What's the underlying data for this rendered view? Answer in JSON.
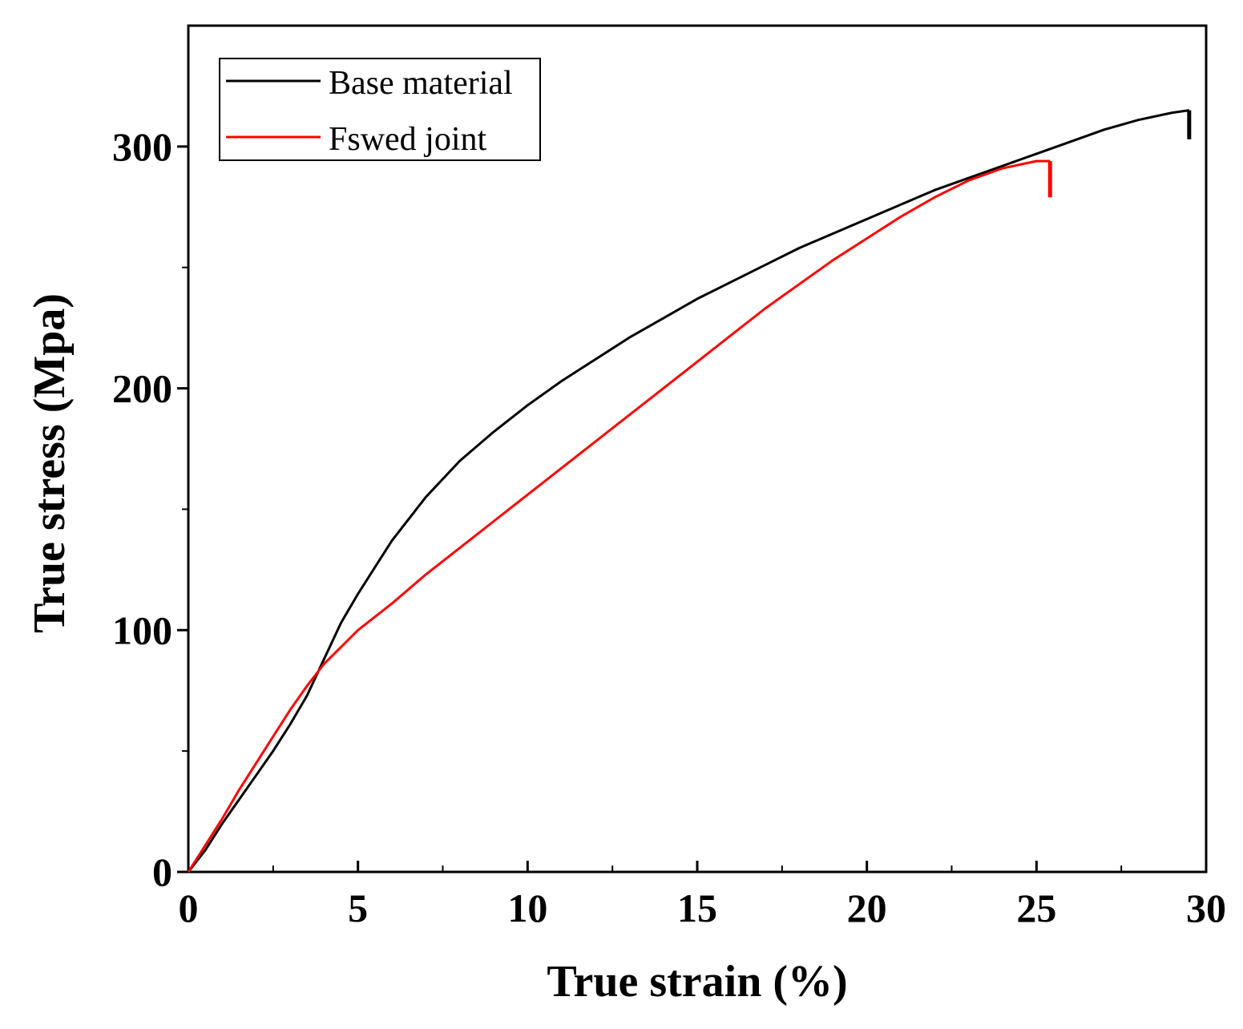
{
  "chart_data": {
    "type": "line",
    "title": "",
    "xlabel": "True strain (%)",
    "ylabel": "True stress (Mpa)",
    "xlim": [
      0,
      30
    ],
    "ylim": [
      0,
      350
    ],
    "x_ticks": [
      0,
      5,
      10,
      15,
      20,
      25,
      30
    ],
    "x_tick_labels": [
      "0",
      "5",
      "10",
      "15",
      "20",
      "25",
      "30"
    ],
    "y_ticks": [
      0,
      100,
      200,
      300
    ],
    "y_tick_labels": [
      "0",
      "100",
      "200",
      "300"
    ],
    "x_minor_step": 2.5,
    "y_minor_step": 50,
    "grid": false,
    "legend_position": "top-left",
    "series": [
      {
        "name": "Base material",
        "color": "#000000",
        "x": [
          0,
          0.5,
          1,
          1.5,
          2,
          2.5,
          3,
          3.5,
          4,
          4.5,
          5,
          6,
          7,
          8,
          9,
          10,
          11,
          12,
          13,
          14,
          15,
          16,
          17,
          18,
          19,
          20,
          21,
          22,
          23,
          24,
          25,
          26,
          27,
          28,
          29,
          29.5
        ],
        "y": [
          0,
          9,
          20,
          30,
          40,
          50,
          61,
          73,
          88,
          103,
          115,
          137,
          155,
          170,
          182,
          193,
          203,
          212,
          221,
          229,
          237,
          244,
          251,
          258,
          264,
          270,
          276,
          282,
          287,
          292,
          297,
          302,
          307,
          311,
          314,
          315
        ],
        "fracture_drop_to": 303
      },
      {
        "name": "Fswed joint",
        "color": "#ff0000",
        "x": [
          0,
          0.5,
          1,
          1.5,
          2,
          2.5,
          3,
          3.5,
          4,
          4.5,
          5,
          6,
          7,
          8,
          9,
          10,
          11,
          12,
          13,
          14,
          15,
          16,
          17,
          18,
          19,
          20,
          21,
          22,
          23,
          24,
          25,
          25.4
        ],
        "y": [
          0,
          11,
          22,
          34,
          45,
          56,
          67,
          77,
          86,
          93,
          100,
          111,
          123,
          134,
          145,
          156,
          167,
          178,
          189,
          200,
          211,
          222,
          233,
          243,
          253,
          262,
          271,
          279,
          286,
          291,
          294,
          294
        ],
        "fracture_drop_to": 279
      }
    ]
  }
}
